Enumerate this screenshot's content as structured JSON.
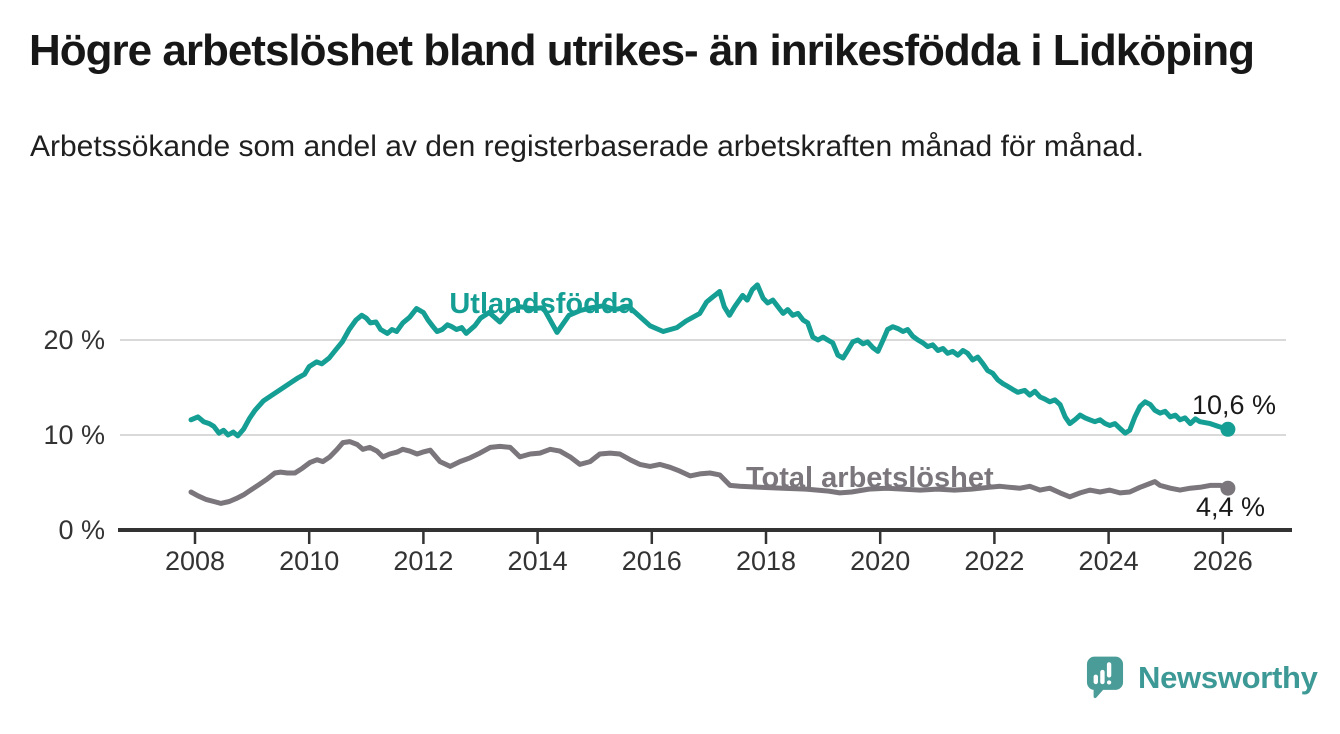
{
  "header": {
    "title": "Högre arbetslöshet bland utrikes- än inrikesfödda i Lidköping",
    "subtitle": "Arbetssökande som andel av den registerbaserade arbetskraften månad för månad."
  },
  "branding": {
    "logo_text": "Newsworthy",
    "logo_icon": "newsworthy-speech-bubble-bar-chart",
    "brand_color": "#4a9c98"
  },
  "colors": {
    "foreign_born_line": "#149e94",
    "total_line": "#7a767b",
    "grid": "#d9d9d9",
    "axis": "#333333",
    "text": "#1a1a1a"
  },
  "chart_data": {
    "type": "line",
    "title": "Högre arbetslöshet bland utrikes- än inrikesfödda i Lidköping",
    "xlabel": "",
    "ylabel": "Arbetssökande som andel av den registerbaserade arbetskraften",
    "x_axis": {
      "tick_labels": [
        "2008",
        "2010",
        "2012",
        "2014",
        "2016",
        "2018",
        "2020",
        "2022",
        "2024",
        "2026"
      ],
      "tick_values": [
        2008,
        2010,
        2012,
        2014,
        2016,
        2018,
        2020,
        2022,
        2024,
        2026
      ],
      "range": [
        2007.9,
        2026.9
      ]
    },
    "y_axis": {
      "tick_labels": [
        "0 %",
        "10 %",
        "20 %"
      ],
      "tick_values": [
        0,
        10,
        20
      ],
      "range": [
        0,
        27
      ],
      "grid": true
    },
    "legend_position": "inline-labels",
    "series": [
      {
        "name": "Utlandsfödda",
        "color": "#149e94",
        "end_value": 10.6,
        "end_value_label": "10,6 %",
        "points": [
          [
            2007.93,
            11.6
          ],
          [
            2008.05,
            11.9
          ],
          [
            2008.15,
            11.4
          ],
          [
            2008.25,
            11.2
          ],
          [
            2008.33,
            10.9
          ],
          [
            2008.42,
            10.2
          ],
          [
            2008.5,
            10.5
          ],
          [
            2008.58,
            10.0
          ],
          [
            2008.67,
            10.3
          ],
          [
            2008.75,
            9.9
          ],
          [
            2008.85,
            10.6
          ],
          [
            2008.95,
            11.7
          ],
          [
            2009.05,
            12.6
          ],
          [
            2009.2,
            13.6
          ],
          [
            2009.35,
            14.2
          ],
          [
            2009.5,
            14.8
          ],
          [
            2009.65,
            15.4
          ],
          [
            2009.8,
            16.0
          ],
          [
            2009.92,
            16.4
          ],
          [
            2010.0,
            17.2
          ],
          [
            2010.13,
            17.7
          ],
          [
            2010.22,
            17.5
          ],
          [
            2010.35,
            18.1
          ],
          [
            2010.47,
            19.0
          ],
          [
            2010.58,
            19.8
          ],
          [
            2010.7,
            21.1
          ],
          [
            2010.82,
            22.1
          ],
          [
            2010.92,
            22.6
          ],
          [
            2011.0,
            22.3
          ],
          [
            2011.07,
            21.8
          ],
          [
            2011.17,
            21.9
          ],
          [
            2011.25,
            21.1
          ],
          [
            2011.37,
            20.7
          ],
          [
            2011.45,
            21.1
          ],
          [
            2011.53,
            20.9
          ],
          [
            2011.64,
            21.8
          ],
          [
            2011.76,
            22.4
          ],
          [
            2011.88,
            23.3
          ],
          [
            2012.0,
            22.9
          ],
          [
            2012.08,
            22.1
          ],
          [
            2012.17,
            21.4
          ],
          [
            2012.24,
            20.9
          ],
          [
            2012.33,
            21.1
          ],
          [
            2012.42,
            21.6
          ],
          [
            2012.5,
            21.4
          ],
          [
            2012.58,
            21.1
          ],
          [
            2012.67,
            21.3
          ],
          [
            2012.75,
            20.7
          ],
          [
            2012.9,
            21.5
          ],
          [
            2013.0,
            22.3
          ],
          [
            2013.15,
            22.9
          ],
          [
            2013.34,
            21.9
          ],
          [
            2013.5,
            23.0
          ],
          [
            2013.7,
            23.5
          ],
          [
            2013.9,
            23.3
          ],
          [
            2014.1,
            23.4
          ],
          [
            2014.34,
            20.8
          ],
          [
            2014.55,
            22.6
          ],
          [
            2014.75,
            23.1
          ],
          [
            2014.95,
            23.4
          ],
          [
            2015.15,
            23.6
          ],
          [
            2015.35,
            23.2
          ],
          [
            2015.6,
            23.5
          ],
          [
            2015.97,
            21.5
          ],
          [
            2016.2,
            20.9
          ],
          [
            2016.44,
            21.3
          ],
          [
            2016.6,
            22.0
          ],
          [
            2016.84,
            22.8
          ],
          [
            2016.96,
            24.0
          ],
          [
            2017.06,
            24.5
          ],
          [
            2017.19,
            25.1
          ],
          [
            2017.27,
            23.5
          ],
          [
            2017.36,
            22.6
          ],
          [
            2017.45,
            23.5
          ],
          [
            2017.59,
            24.7
          ],
          [
            2017.67,
            24.2
          ],
          [
            2017.76,
            25.3
          ],
          [
            2017.85,
            25.8
          ],
          [
            2017.95,
            24.4
          ],
          [
            2018.03,
            23.9
          ],
          [
            2018.12,
            24.2
          ],
          [
            2018.21,
            23.5
          ],
          [
            2018.3,
            22.8
          ],
          [
            2018.38,
            23.2
          ],
          [
            2018.47,
            22.6
          ],
          [
            2018.56,
            22.8
          ],
          [
            2018.65,
            22.1
          ],
          [
            2018.73,
            21.8
          ],
          [
            2018.82,
            20.3
          ],
          [
            2018.91,
            20.0
          ],
          [
            2019.0,
            20.3
          ],
          [
            2019.08,
            20.0
          ],
          [
            2019.17,
            19.7
          ],
          [
            2019.26,
            18.4
          ],
          [
            2019.35,
            18.1
          ],
          [
            2019.43,
            18.9
          ],
          [
            2019.52,
            19.8
          ],
          [
            2019.61,
            20.0
          ],
          [
            2019.7,
            19.6
          ],
          [
            2019.78,
            19.8
          ],
          [
            2019.87,
            19.2
          ],
          [
            2019.96,
            18.8
          ],
          [
            2020.05,
            20.0
          ],
          [
            2020.13,
            21.1
          ],
          [
            2020.22,
            21.4
          ],
          [
            2020.31,
            21.2
          ],
          [
            2020.4,
            20.9
          ],
          [
            2020.48,
            21.1
          ],
          [
            2020.57,
            20.4
          ],
          [
            2020.66,
            20.0
          ],
          [
            2020.75,
            19.7
          ],
          [
            2020.83,
            19.3
          ],
          [
            2020.92,
            19.5
          ],
          [
            2021.01,
            18.9
          ],
          [
            2021.1,
            19.1
          ],
          [
            2021.18,
            18.6
          ],
          [
            2021.27,
            18.8
          ],
          [
            2021.36,
            18.4
          ],
          [
            2021.45,
            18.9
          ],
          [
            2021.53,
            18.6
          ],
          [
            2021.62,
            17.9
          ],
          [
            2021.71,
            18.2
          ],
          [
            2021.8,
            17.5
          ],
          [
            2021.88,
            16.8
          ],
          [
            2021.97,
            16.5
          ],
          [
            2022.06,
            15.8
          ],
          [
            2022.15,
            15.4
          ],
          [
            2022.24,
            15.1
          ],
          [
            2022.32,
            14.8
          ],
          [
            2022.41,
            14.5
          ],
          [
            2022.53,
            14.7
          ],
          [
            2022.62,
            14.2
          ],
          [
            2022.71,
            14.6
          ],
          [
            2022.8,
            14.0
          ],
          [
            2022.88,
            13.8
          ],
          [
            2022.97,
            13.5
          ],
          [
            2023.06,
            13.7
          ],
          [
            2023.15,
            13.2
          ],
          [
            2023.24,
            11.9
          ],
          [
            2023.32,
            11.2
          ],
          [
            2023.41,
            11.6
          ],
          [
            2023.5,
            12.1
          ],
          [
            2023.59,
            11.8
          ],
          [
            2023.67,
            11.6
          ],
          [
            2023.76,
            11.4
          ],
          [
            2023.85,
            11.6
          ],
          [
            2023.94,
            11.2
          ],
          [
            2024.02,
            11.0
          ],
          [
            2024.11,
            11.2
          ],
          [
            2024.2,
            10.7
          ],
          [
            2024.29,
            10.2
          ],
          [
            2024.37,
            10.5
          ],
          [
            2024.46,
            11.9
          ],
          [
            2024.55,
            13.0
          ],
          [
            2024.64,
            13.5
          ],
          [
            2024.73,
            13.2
          ],
          [
            2024.81,
            12.6
          ],
          [
            2024.9,
            12.3
          ],
          [
            2024.99,
            12.5
          ],
          [
            2025.08,
            11.9
          ],
          [
            2025.17,
            12.1
          ],
          [
            2025.25,
            11.6
          ],
          [
            2025.34,
            11.8
          ],
          [
            2025.43,
            11.2
          ],
          [
            2025.52,
            11.7
          ],
          [
            2025.6,
            11.4
          ],
          [
            2025.78,
            11.2
          ],
          [
            2025.92,
            10.9
          ],
          [
            2026.09,
            10.6
          ]
        ]
      },
      {
        "name": "Total arbetslöshet",
        "color": "#7a767b",
        "end_value": 4.4,
        "end_value_label": "4,4 %",
        "points": [
          [
            2007.93,
            4.0
          ],
          [
            2008.05,
            3.6
          ],
          [
            2008.2,
            3.2
          ],
          [
            2008.33,
            3.0
          ],
          [
            2008.45,
            2.8
          ],
          [
            2008.6,
            3.0
          ],
          [
            2008.72,
            3.3
          ],
          [
            2008.85,
            3.7
          ],
          [
            2008.95,
            4.1
          ],
          [
            2009.1,
            4.7
          ],
          [
            2009.25,
            5.3
          ],
          [
            2009.4,
            6.0
          ],
          [
            2009.5,
            6.1
          ],
          [
            2009.62,
            6.0
          ],
          [
            2009.75,
            6.0
          ],
          [
            2009.88,
            6.5
          ],
          [
            2010.01,
            7.1
          ],
          [
            2010.14,
            7.4
          ],
          [
            2010.24,
            7.2
          ],
          [
            2010.36,
            7.7
          ],
          [
            2010.49,
            8.5
          ],
          [
            2010.59,
            9.2
          ],
          [
            2010.71,
            9.3
          ],
          [
            2010.84,
            9.0
          ],
          [
            2010.94,
            8.5
          ],
          [
            2011.06,
            8.7
          ],
          [
            2011.19,
            8.3
          ],
          [
            2011.29,
            7.7
          ],
          [
            2011.41,
            8.0
          ],
          [
            2011.54,
            8.2
          ],
          [
            2011.64,
            8.5
          ],
          [
            2011.76,
            8.3
          ],
          [
            2011.89,
            8.0
          ],
          [
            2011.99,
            8.2
          ],
          [
            2012.12,
            8.4
          ],
          [
            2012.29,
            7.2
          ],
          [
            2012.47,
            6.7
          ],
          [
            2012.64,
            7.2
          ],
          [
            2012.82,
            7.6
          ],
          [
            2012.99,
            8.1
          ],
          [
            2013.17,
            8.7
          ],
          [
            2013.34,
            8.8
          ],
          [
            2013.52,
            8.7
          ],
          [
            2013.69,
            7.7
          ],
          [
            2013.87,
            8.0
          ],
          [
            2014.04,
            8.1
          ],
          [
            2014.22,
            8.5
          ],
          [
            2014.39,
            8.3
          ],
          [
            2014.57,
            7.7
          ],
          [
            2014.74,
            6.9
          ],
          [
            2014.92,
            7.2
          ],
          [
            2015.09,
            8.0
          ],
          [
            2015.27,
            8.1
          ],
          [
            2015.44,
            8.0
          ],
          [
            2015.62,
            7.4
          ],
          [
            2015.79,
            6.9
          ],
          [
            2015.97,
            6.7
          ],
          [
            2016.14,
            6.9
          ],
          [
            2016.32,
            6.6
          ],
          [
            2016.49,
            6.2
          ],
          [
            2016.67,
            5.7
          ],
          [
            2016.84,
            5.9
          ],
          [
            2017.02,
            6.0
          ],
          [
            2017.19,
            5.8
          ],
          [
            2017.37,
            4.7
          ],
          [
            2017.54,
            4.6
          ],
          [
            2017.9,
            4.5
          ],
          [
            2018.3,
            4.4
          ],
          [
            2018.7,
            4.3
          ],
          [
            2019.1,
            4.1
          ],
          [
            2019.29,
            3.9
          ],
          [
            2019.5,
            4.0
          ],
          [
            2019.8,
            4.3
          ],
          [
            2020.1,
            4.4
          ],
          [
            2020.4,
            4.3
          ],
          [
            2020.7,
            4.2
          ],
          [
            2021.0,
            4.3
          ],
          [
            2021.3,
            4.2
          ],
          [
            2021.6,
            4.3
          ],
          [
            2021.9,
            4.5
          ],
          [
            2022.1,
            4.6
          ],
          [
            2022.27,
            4.5
          ],
          [
            2022.45,
            4.4
          ],
          [
            2022.62,
            4.6
          ],
          [
            2022.8,
            4.2
          ],
          [
            2022.97,
            4.4
          ],
          [
            2023.15,
            3.9
          ],
          [
            2023.32,
            3.5
          ],
          [
            2023.5,
            3.9
          ],
          [
            2023.67,
            4.2
          ],
          [
            2023.85,
            4.0
          ],
          [
            2024.02,
            4.2
          ],
          [
            2024.2,
            3.9
          ],
          [
            2024.37,
            4.0
          ],
          [
            2024.55,
            4.5
          ],
          [
            2024.73,
            4.9
          ],
          [
            2024.81,
            5.1
          ],
          [
            2024.9,
            4.7
          ],
          [
            2025.08,
            4.4
          ],
          [
            2025.25,
            4.2
          ],
          [
            2025.43,
            4.4
          ],
          [
            2025.6,
            4.5
          ],
          [
            2025.78,
            4.7
          ],
          [
            2025.96,
            4.7
          ],
          [
            2026.09,
            4.4
          ]
        ]
      }
    ]
  }
}
